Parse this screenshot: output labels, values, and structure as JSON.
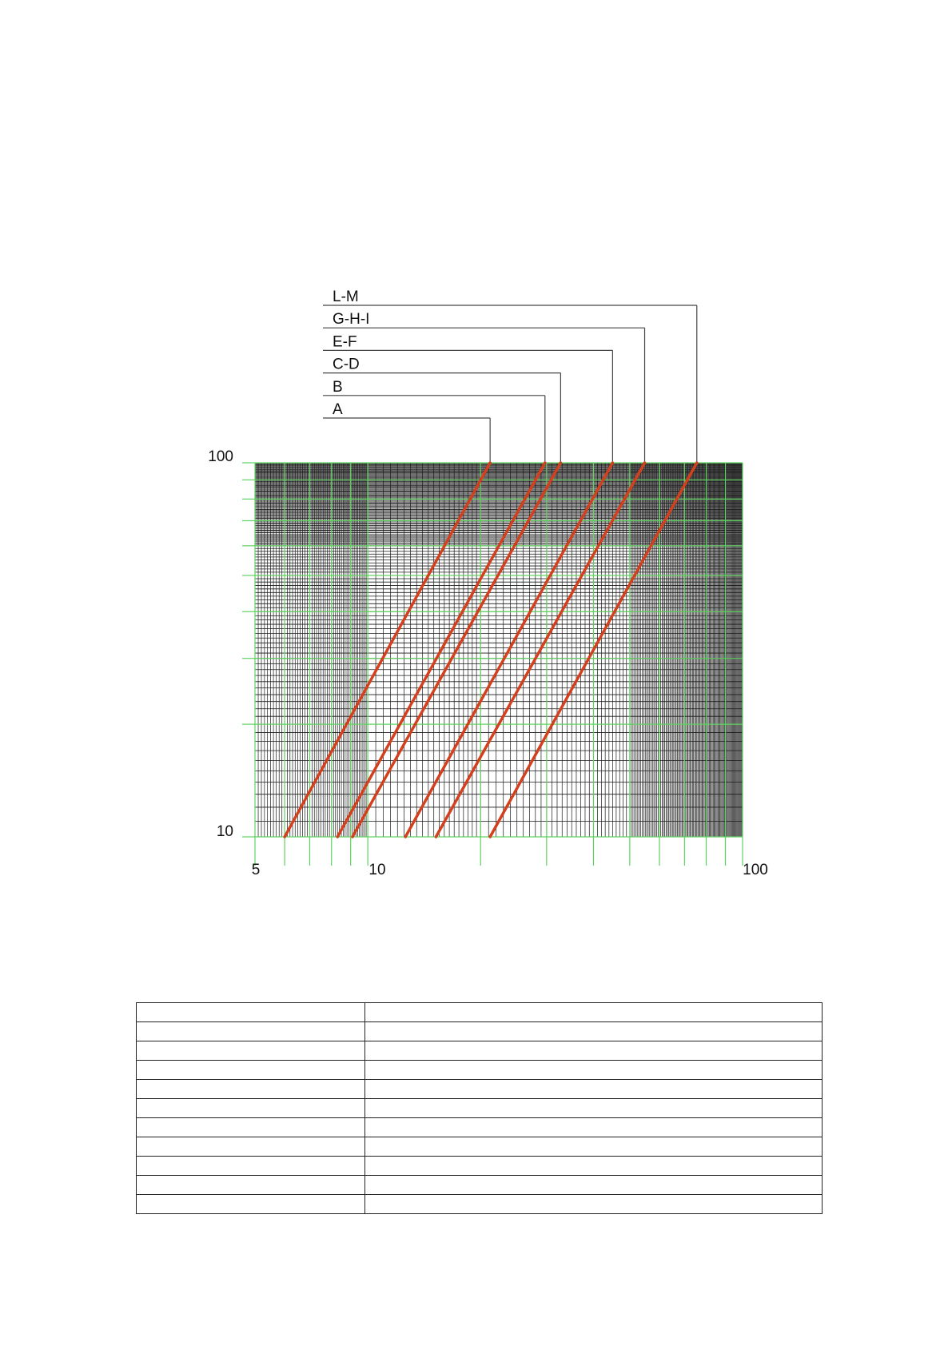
{
  "chart_data": {
    "type": "line",
    "x_scale": "log",
    "y_scale": "log",
    "xlim": [
      5,
      100
    ],
    "ylim": [
      10,
      100
    ],
    "x_tick_labels": [
      "5",
      "10",
      "100"
    ],
    "x_ticks": [
      5,
      10,
      100
    ],
    "y_tick_labels": [
      "10",
      "100"
    ],
    "y_ticks": [
      10,
      100
    ],
    "grid": true,
    "colors": {
      "series": "#d2401e",
      "grid_minor": "#1a1a1a",
      "grid_major": "#5fd35f",
      "leader": "#444444"
    },
    "series": [
      {
        "name": "A",
        "x": [
          6.0,
          21.2
        ],
        "y": [
          10,
          100
        ]
      },
      {
        "name": "B",
        "x": [
          8.3,
          29.7
        ],
        "y": [
          10,
          100
        ]
      },
      {
        "name": "C-D",
        "x": [
          9.1,
          32.7
        ],
        "y": [
          10,
          100
        ]
      },
      {
        "name": "E-F",
        "x": [
          12.6,
          45
        ],
        "y": [
          10,
          100
        ]
      },
      {
        "name": "G-H-I",
        "x": [
          15.2,
          54.8
        ],
        "y": [
          10,
          100
        ]
      },
      {
        "name": "L-M",
        "x": [
          21.2,
          75.5
        ],
        "y": [
          10,
          100
        ]
      }
    ]
  },
  "table": {
    "rows": 11,
    "columns": 2
  }
}
